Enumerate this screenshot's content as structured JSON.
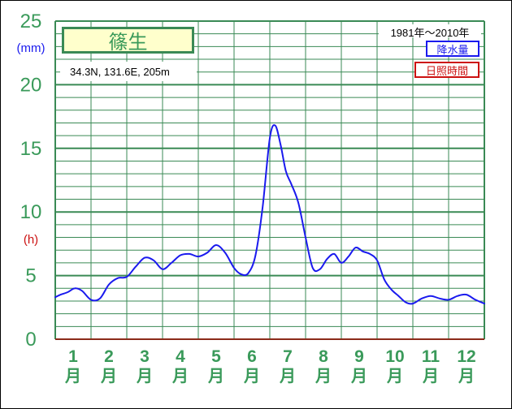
{
  "station": {
    "name": "篠生",
    "coords": "34.3N, 131.6E, 205m",
    "period": "1981年〜2010年"
  },
  "legend": {
    "precip_label": "降水量",
    "sunshine_label": "日照時間",
    "precip_color": "#1a1aee",
    "sunshine_color": "#cc1111"
  },
  "axis": {
    "y_unit_precip": "(mm)",
    "y_unit_sun": "(h)",
    "month_suffix": "月"
  },
  "colors": {
    "grid": "#3a8a55",
    "tick_text": "#3a9a5a",
    "baseline": "#8b2a1a"
  },
  "chart_data": {
    "type": "line",
    "title": "篠生",
    "xlabel": "",
    "ylabel": "(mm)",
    "ylim": [
      0,
      25
    ],
    "yticks": [
      0,
      5,
      10,
      15,
      20,
      25
    ],
    "categories": [
      "1",
      "2",
      "3",
      "4",
      "5",
      "6",
      "7",
      "8",
      "9",
      "10",
      "11",
      "12"
    ],
    "grid": true,
    "legend_position": "top-right",
    "series": [
      {
        "name": "降水量",
        "color": "#1a1aee",
        "x": [
          0.0,
          0.15,
          0.35,
          0.55,
          0.75,
          1.0,
          1.25,
          1.5,
          1.75,
          2.0,
          2.25,
          2.5,
          2.75,
          3.0,
          3.25,
          3.5,
          3.75,
          4.0,
          4.25,
          4.5,
          4.75,
          5.0,
          5.2,
          5.4,
          5.6,
          5.8,
          6.0,
          6.15,
          6.3,
          6.45,
          6.6,
          6.8,
          7.0,
          7.2,
          7.4,
          7.6,
          7.8,
          8.0,
          8.2,
          8.4,
          8.6,
          8.8,
          9.0,
          9.2,
          9.4,
          9.6,
          9.8,
          10.0,
          10.25,
          10.5,
          10.75,
          11.0,
          11.25,
          11.5,
          11.75,
          12.0
        ],
        "values": [
          3.3,
          3.5,
          3.7,
          4.0,
          3.8,
          3.1,
          3.2,
          4.3,
          4.8,
          4.9,
          5.7,
          6.4,
          6.2,
          5.5,
          6.0,
          6.6,
          6.7,
          6.5,
          6.8,
          7.4,
          6.8,
          5.6,
          5.1,
          5.2,
          6.6,
          10.4,
          15.8,
          16.8,
          15.3,
          13.2,
          12.2,
          10.7,
          8.0,
          5.6,
          5.5,
          6.3,
          6.7,
          6.0,
          6.5,
          7.2,
          6.9,
          6.7,
          6.2,
          4.7,
          3.9,
          3.4,
          2.9,
          2.8,
          3.2,
          3.4,
          3.2,
          3.1,
          3.4,
          3.5,
          3.1,
          2.8
        ]
      }
    ]
  }
}
